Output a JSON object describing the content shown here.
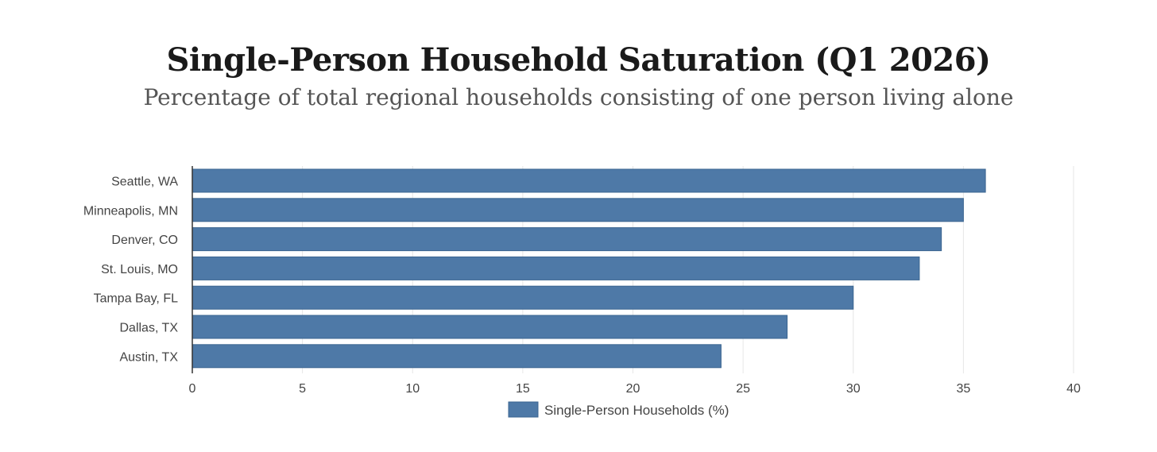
{
  "chart_data": {
    "type": "bar",
    "orientation": "horizontal",
    "title": "Single-Person Household Saturation (Q1 2026)",
    "subtitle": "Percentage of total regional households consisting of one person living alone",
    "categories": [
      "Seattle, WA",
      "Minneapolis, MN",
      "Denver, CO",
      "St. Louis, MO",
      "Tampa Bay, FL",
      "Dallas, TX",
      "Austin, TX"
    ],
    "series": [
      {
        "name": "Single-Person Households (%)",
        "values": [
          36,
          35,
          34,
          33,
          30,
          27,
          24
        ]
      }
    ],
    "xlim": [
      0,
      40
    ],
    "xticks": [
      "0",
      "5",
      "10",
      "15",
      "20",
      "25",
      "30",
      "35",
      "40"
    ],
    "grid": true,
    "legend_position": "bottom",
    "colors": {
      "bar_fill": "#4e79a7",
      "bar_stroke": "#3b6590",
      "grid": "#e6e6e6",
      "axis": "#333333"
    }
  }
}
